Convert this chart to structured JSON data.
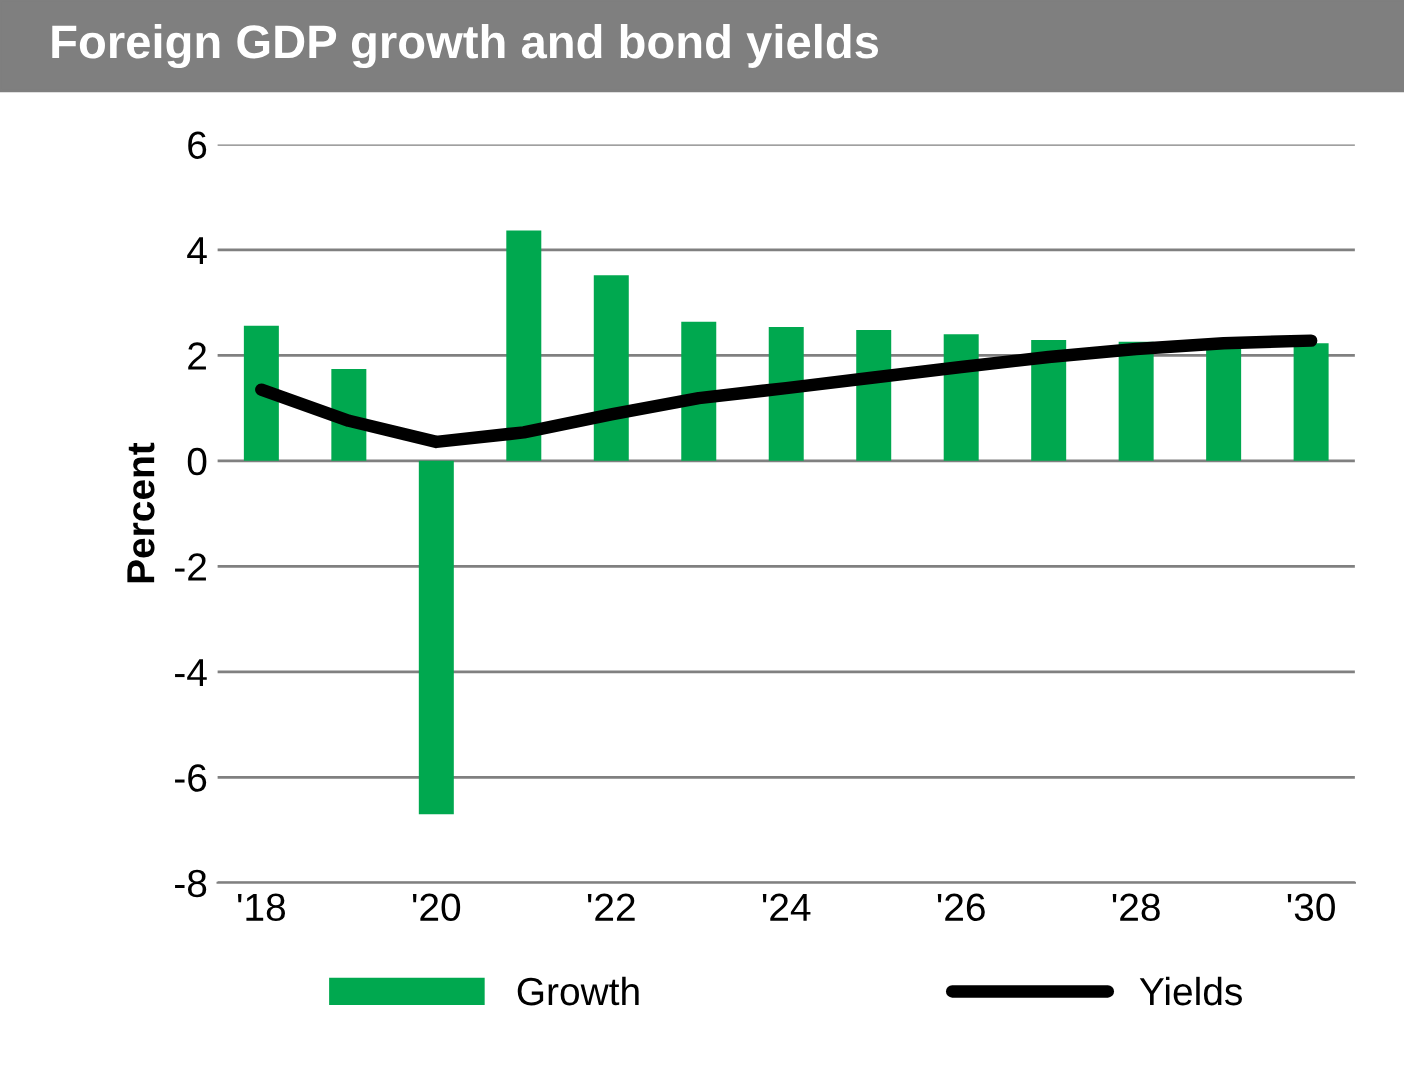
{
  "chart_data": {
    "type": "bar",
    "title": "Foreign GDP growth and bond yields",
    "ylabel": "Percent",
    "categories": [
      "'18",
      null,
      "'20",
      null,
      "'22",
      null,
      "'24",
      null,
      "'26",
      null,
      "'28",
      null,
      "'30"
    ],
    "series": [
      {
        "name": "Growth",
        "color": "#00a84f",
        "values": [
          2.56,
          1.74,
          -6.7,
          4.37,
          3.52,
          2.64,
          2.54,
          2.48,
          2.4,
          2.29,
          2.26,
          2.2,
          2.23
        ]
      },
      {
        "name": "Yields",
        "type": "line",
        "color": "#000000",
        "values": [
          1.35,
          0.76,
          0.36,
          0.54,
          0.88,
          1.19,
          1.38,
          1.58,
          1.78,
          1.97,
          2.12,
          2.23,
          2.28
        ]
      }
    ],
    "ylim": [
      -8,
      6
    ],
    "yticks": [
      -8,
      -6,
      -4,
      -2,
      0,
      2,
      4,
      6
    ],
    "grid": "y",
    "legend": "bottom",
    "marker": "none",
    "line_style": "solid"
  }
}
